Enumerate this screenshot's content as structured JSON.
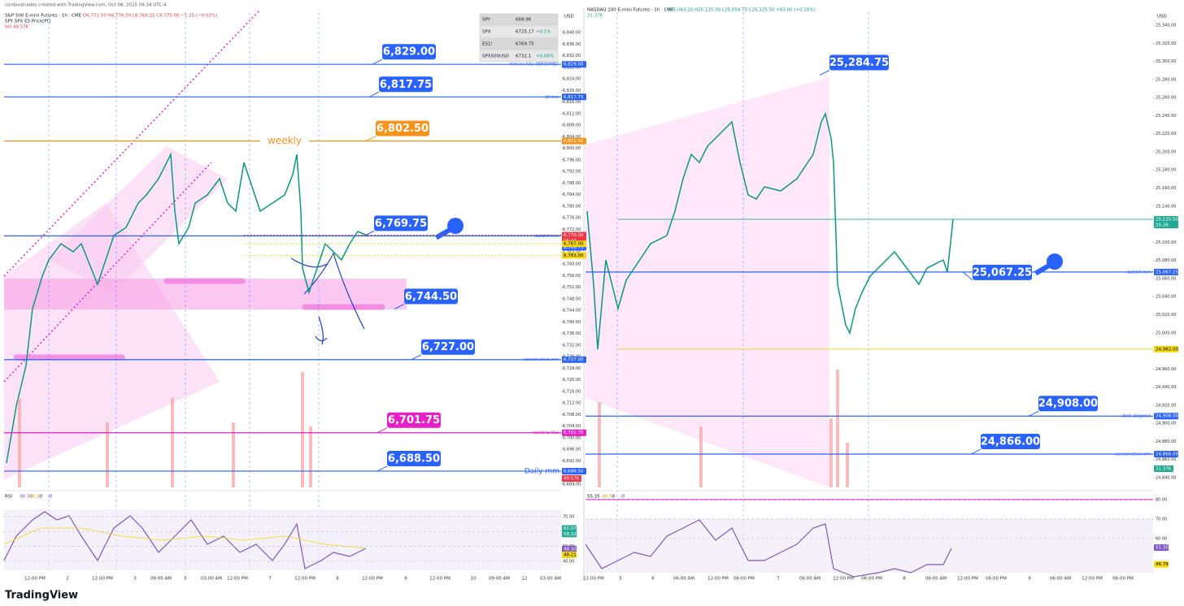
{
  "left": {
    "credit": "cordovatrades created with TradingView.com, Oct 08, 2025 09:34 UTC-4",
    "title": "S&P 500 E-mini Futures · 1h · CME",
    "ohlc": "O6,771.50 H6,776.50 L6,769.25 C6,770.00 −1.25 (−0.02%)",
    "subtitle": "SPY SPX ES Price[Pt]",
    "volume": "Vol 49.57K",
    "currency": "USD",
    "overlay": [
      {
        "symbol": "SPY",
        "price": "669.96"
      },
      {
        "symbol": "SPX",
        "price": "6725.17",
        "change": "+0.1%"
      },
      {
        "symbol": "ES1!",
        "price": "6769.75"
      },
      {
        "symbol": "SPX500USD",
        "price": "6732.1",
        "change": "+0.06%"
      }
    ],
    "ticks": [
      {
        "value": 6684,
        "label": "6,684.00"
      },
      {
        "value": 6688,
        "label": "6,688.00"
      },
      {
        "value": 6692,
        "label": "6,692.00"
      },
      {
        "value": 6696,
        "label": "6,696.00"
      },
      {
        "value": 6700,
        "label": "6,700.00"
      },
      {
        "value": 6704,
        "label": "6,704.00"
      },
      {
        "value": 6708,
        "label": "6,708.00"
      },
      {
        "value": 6712,
        "label": "6,712.00"
      },
      {
        "value": 6716,
        "label": "6,716.00"
      },
      {
        "value": 6720,
        "label": "6,720.00"
      },
      {
        "value": 6724,
        "label": "6,724.00"
      },
      {
        "value": 6728,
        "label": "6,728.00"
      },
      {
        "value": 6732,
        "label": "6,732.00"
      },
      {
        "value": 6736,
        "label": "6,736.00"
      },
      {
        "value": 6740,
        "label": "6,740.00"
      },
      {
        "value": 6744,
        "label": "6,744.00"
      },
      {
        "value": 6748,
        "label": "6,748.00"
      },
      {
        "value": 6752,
        "label": "6,752.00"
      },
      {
        "value": 6756,
        "label": "6,756.00"
      },
      {
        "value": 6760,
        "label": "6,760.00"
      },
      {
        "value": 6764,
        "label": "6,764.00"
      },
      {
        "value": 6768,
        "label": "6,768.00"
      },
      {
        "value": 6772,
        "label": "6,772.00"
      },
      {
        "value": 6776,
        "label": "6,776.00"
      },
      {
        "value": 6780,
        "label": "6,780.00"
      },
      {
        "value": 6784,
        "label": "6,784.00"
      },
      {
        "value": 6788,
        "label": "6,788.00"
      },
      {
        "value": 6792,
        "label": "6,792.00"
      },
      {
        "value": 6796,
        "label": "6,796.00"
      },
      {
        "value": 6800,
        "label": "6,800.00"
      },
      {
        "value": 6804,
        "label": "6,804.00"
      },
      {
        "value": 6808,
        "label": "6,808.00"
      },
      {
        "value": 6812,
        "label": "6,812.00"
      },
      {
        "value": 6816,
        "label": "6,816.00"
      },
      {
        "value": 6820,
        "label": "6,820.00"
      },
      {
        "value": 6824,
        "label": "6,824.00"
      },
      {
        "value": 6828,
        "label": "6,828.00"
      },
      {
        "value": 6832,
        "label": "6,832.00"
      },
      {
        "value": 6836,
        "label": "6,836.00"
      },
      {
        "value": 6840,
        "label": "6,840.00"
      }
    ],
    "levels": [
      {
        "value": 6829,
        "label": "6,829.00",
        "note": "mm inv h&s DEFORMED",
        "color": "#2962ff"
      },
      {
        "value": 6817.75,
        "label": "6,817.75",
        "note": "bf mm",
        "color": "#2962ff"
      },
      {
        "value": 6802.5,
        "label": "6,802.50",
        "note": "weekly",
        "color": "#f7931a"
      },
      {
        "value": 6769.75,
        "label": "6,769.75",
        "note": "batshit mm",
        "color": "#2962ff"
      },
      {
        "value": 6744.5,
        "label": "6,744.50",
        "color": "#2962ff"
      },
      {
        "value": 6727,
        "label": "6,727.00",
        "note": "conservative mm",
        "color": "#2962ff"
      },
      {
        "value": 6701.75,
        "label": "6,701.75",
        "note": "neckline h&s",
        "color": "#e91ec8"
      },
      {
        "value": 6688.5,
        "label": "6,688.50",
        "note": "Daily mm",
        "color": "#2962ff"
      }
    ],
    "tags": [
      {
        "value": 6770,
        "label": "6,770.00",
        "sub": "25:27",
        "color": "#f23645"
      },
      {
        "value": 6767,
        "label": "6,767.00",
        "color": "#f5d90a"
      },
      {
        "value": 6763,
        "label": "6,763.00",
        "color": "#f5d90a"
      }
    ],
    "volume_tag": {
      "label": "49.57K",
      "color": "#f23645"
    },
    "rsi": {
      "legend": [
        "RSI",
        "48.30",
        "48.21",
        "Ø",
        "Ø"
      ],
      "ticks": [
        {
          "value": 70,
          "label": "70.00"
        },
        {
          "value": 60,
          "label": "60.00"
        },
        {
          "value": 50,
          "label": "50.00"
        },
        {
          "value": 40,
          "label": "40.00"
        }
      ],
      "tags": [
        {
          "value": 62.07,
          "label": "62.07",
          "color": "#22ab94"
        },
        {
          "value": 58.32,
          "label": "58.32",
          "color": "#22ab94"
        },
        {
          "value": 48.3,
          "label": "48.30",
          "color": "#7e57c2"
        },
        {
          "value": 48.21,
          "label": "48.21",
          "color": "#f5d90a"
        }
      ]
    },
    "times": [
      "12:00 PM",
      "2",
      "12:00 PM",
      "3",
      "09:00 AM",
      "5",
      "03:00 AM",
      "12:00 PM",
      "7",
      "12:00 PM",
      "8",
      "12:00 PM",
      "9",
      "12:00 PM",
      "10",
      "09:00 AM",
      "12",
      "03:00 AM"
    ]
  },
  "right": {
    "title": "NASDAQ 100 E-mini Futures · 1h · CME",
    "ohlc": "O25,063.25 H25,135.00 L25,054.75 C25,125.50 +63.00 (+0.25%)",
    "volume": "21.37K",
    "currency": "USD",
    "ticks": [
      {
        "value": 24840,
        "label": "24,840.00"
      },
      {
        "value": 24860,
        "label": "24,860.00"
      },
      {
        "value": 24880,
        "label": "24,880.00"
      },
      {
        "value": 24900,
        "label": "24,900.00"
      },
      {
        "value": 24920,
        "label": "24,920.00"
      },
      {
        "value": 24940,
        "label": "24,940.00"
      },
      {
        "value": 24960,
        "label": "24,960.00"
      },
      {
        "value": 24980,
        "label": "24,980.00"
      },
      {
        "value": 25000,
        "label": "25,000.00"
      },
      {
        "value": 25020,
        "label": "25,020.00"
      },
      {
        "value": 25040,
        "label": "25,040.00"
      },
      {
        "value": 25060,
        "label": "25,060.00"
      },
      {
        "value": 25080,
        "label": "25,080.00"
      },
      {
        "value": 25100,
        "label": "25,100.00"
      },
      {
        "value": 25120,
        "label": "25,120.00"
      },
      {
        "value": 25140,
        "label": "25,140.00"
      },
      {
        "value": 25160,
        "label": "25,160.00"
      },
      {
        "value": 25180,
        "label": "25,180.00"
      },
      {
        "value": 25200,
        "label": "25,200.00"
      },
      {
        "value": 25220,
        "label": "25,220.00"
      },
      {
        "value": 25240,
        "label": "25,240.00"
      },
      {
        "value": 25260,
        "label": "25,260.00"
      },
      {
        "value": 25280,
        "label": "25,280.00"
      },
      {
        "value": 25300,
        "label": "25,300.00"
      },
      {
        "value": 25320,
        "label": "25,320.00"
      },
      {
        "value": 25340,
        "label": "25,340.00"
      }
    ],
    "levels": [
      {
        "value": 25284.75,
        "label": "25,284.75",
        "color": "#2962ff"
      },
      {
        "value": 25067.25,
        "label": "25,067.25",
        "note": "batshit mm",
        "color": "#2962ff"
      },
      {
        "value": 24908,
        "label": "24,908.00",
        "note": "daily diagonal",
        "color": "#2962ff"
      },
      {
        "value": 24866,
        "label": "24,866.00",
        "note": "conservative mm",
        "color": "#2962ff"
      }
    ],
    "tags": [
      {
        "value": 25125.5,
        "label": "25,125.50",
        "sub": "25:26",
        "color": "#22ab94"
      },
      {
        "value": 24982,
        "label": "24,982.00",
        "color": "#f5d90a"
      }
    ],
    "volume_tag": {
      "label": "21.37K",
      "color": "#22ab94"
    },
    "rsi": {
      "legend": [
        "55.35",
        "46.79",
        "Ø",
        "Ø"
      ],
      "ticks": [
        {
          "value": 80,
          "label": "80.00"
        },
        {
          "value": 70,
          "label": "70.00"
        },
        {
          "value": 60,
          "label": "60.00"
        }
      ],
      "tags": [
        {
          "value": 55.35,
          "label": "55.35",
          "color": "#7e57c2"
        },
        {
          "value": 46.79,
          "label": "46.79",
          "color": "#f5d90a"
        }
      ]
    },
    "times": [
      "12:00 PM",
      "5",
      "6",
      "06:00 AM",
      "12:00 PM",
      "06:00 PM",
      "7",
      "06:00 AM",
      "12:00 PM",
      "06:00 PM",
      "8",
      "06:00 AM",
      "12:00 PM",
      "06:00 PM",
      "9",
      "06:00 AM",
      "12:00 PM",
      "06:00 PM"
    ]
  },
  "footer": "TradingView"
}
